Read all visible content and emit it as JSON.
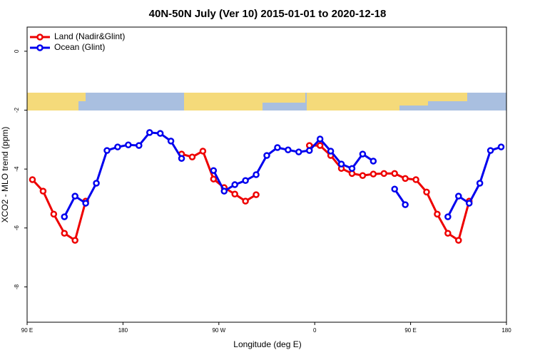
{
  "chart_data": {
    "type": "line",
    "title": "40N-50N July (Ver 10)   2015-01-01 to 2020-12-18",
    "x_label": "Longitude (deg E)",
    "y_label": "XCO2 - MLO trend (ppm)",
    "x": [
      95,
      105,
      115,
      125,
      135,
      145,
      155,
      165,
      175,
      185,
      195,
      205,
      215,
      225,
      235,
      245,
      255,
      265,
      275,
      285,
      295,
      305,
      315,
      325,
      335,
      345,
      355,
      365,
      375,
      385,
      395,
      405,
      415,
      425,
      435,
      445,
      455,
      465,
      475,
      485,
      495,
      505,
      515,
      525,
      535
    ],
    "series": [
      {
        "name": "Land (Nadir&Glint)",
        "color": "#ee0000",
        "values": [
          -4.36,
          -4.75,
          -5.53,
          -6.18,
          -6.42,
          -5.09,
          null,
          null,
          null,
          null,
          null,
          null,
          null,
          null,
          -3.49,
          -3.59,
          -3.39,
          -4.34,
          -4.63,
          -4.85,
          -5.09,
          -4.87,
          null,
          null,
          null,
          null,
          -3.2,
          -3.2,
          -3.54,
          -3.98,
          -4.15,
          -4.22,
          -4.17,
          -4.15,
          -4.15,
          -4.32,
          -4.36,
          -4.78,
          -5.53,
          -6.18,
          -6.42,
          -5.09,
          null,
          null,
          null
        ]
      },
      {
        "name": "Ocean (Glint)",
        "color": "#0000ee",
        "values": [
          null,
          null,
          null,
          -5.62,
          -4.92,
          -5.16,
          -4.48,
          -3.37,
          -3.25,
          -3.18,
          -3.2,
          -2.76,
          -2.79,
          -3.05,
          -3.64,
          null,
          null,
          -4.05,
          -4.75,
          -4.53,
          -4.39,
          -4.19,
          -3.54,
          -3.27,
          -3.35,
          -3.42,
          -3.37,
          -2.98,
          -3.39,
          -3.83,
          -3.98,
          -3.49,
          -3.73,
          null,
          -4.68,
          -5.21,
          null,
          null,
          null,
          -5.62,
          -4.92,
          -5.16,
          -4.48,
          -3.37,
          -3.25
        ]
      }
    ],
    "xlim": [
      90,
      540
    ],
    "xticks": [
      {
        "value": 90,
        "label": "90 E"
      },
      180,
      {
        "value": 270,
        "label": "90 W"
      },
      {
        "value": 360,
        "label": "0"
      },
      {
        "value": 450,
        "label": "90 E"
      },
      {
        "value": 540,
        "label": "180"
      }
    ],
    "ylim": [
      -9.2,
      0.82
    ],
    "yticks": [
      0,
      -2,
      -4,
      -6,
      -8
    ],
    "legend": "top-left"
  }
}
